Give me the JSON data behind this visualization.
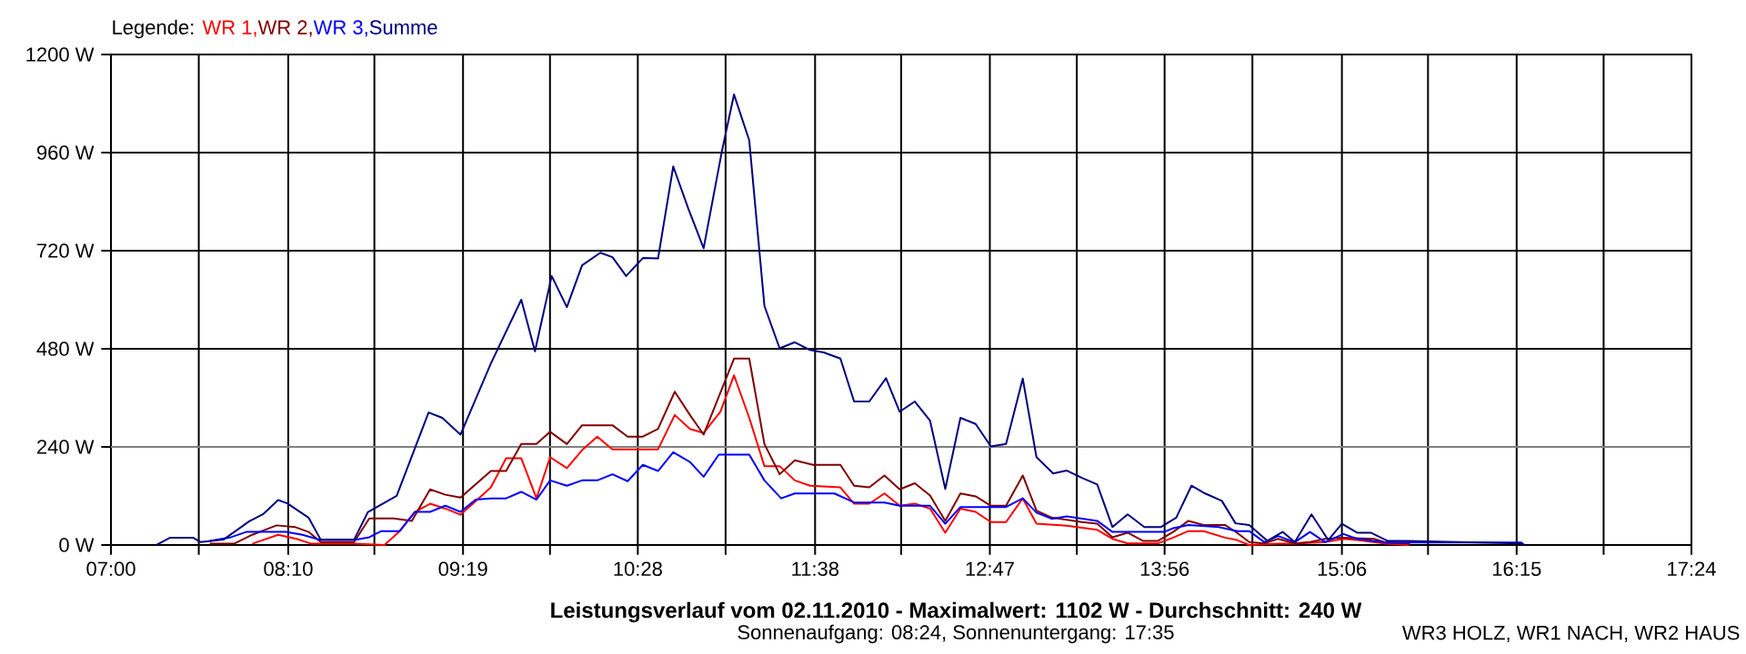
{
  "chart_data": {
    "type": "line",
    "title": "**Leistungsverlauf vom 02.11.2010 - Maximalwert: 1102 W - Durchschnitt: 240 W**",
    "subtitle": "Sonnenaufgang: 08:24, Sonnenuntergang: 17:35",
    "legend_title": "Legende:",
    "legend": "top left",
    "grid": true,
    "annotations": [
      "WR3 HOLZ, WR1 NACH, WR2 HAUS"
    ],
    "xlim": [
      7,
      17.4
    ],
    "ylim": [
      0,
      1200
    ],
    "xticks": [
      {
        "value": 7,
        "label": "07:00"
      },
      {
        "value": 7.5778,
        "label": null
      },
      {
        "value": 8.1667,
        "label": "08:10"
      },
      {
        "value": 8.7333,
        "label": null
      },
      {
        "value": 9.3167,
        "label": "09:19"
      },
      {
        "value": 9.8889,
        "label": null
      },
      {
        "value": 10.4667,
        "label": "10:28"
      },
      {
        "value": 11.0444,
        "label": null
      },
      {
        "value": 11.6333,
        "label": "11:38"
      },
      {
        "value": 12.2,
        "label": null
      },
      {
        "value": 12.7833,
        "label": "12:47"
      },
      {
        "value": 13.3556,
        "label": null
      },
      {
        "value": 13.9333,
        "label": "13:56"
      },
      {
        "value": 14.5111,
        "label": null
      },
      {
        "value": 15.1,
        "label": "15:06"
      },
      {
        "value": 15.6667,
        "label": null
      },
      {
        "value": 16.25,
        "label": "16:15"
      },
      {
        "value": 16.8222,
        "label": null
      },
      {
        "value": 17.4,
        "label": "17:24"
      }
    ],
    "yticks": [
      {
        "value": 0,
        "label": "0 W"
      },
      {
        "value": 240,
        "label": "240 W"
      },
      {
        "value": 480,
        "label": "480 W"
      },
      {
        "value": 720,
        "label": "720 W"
      },
      {
        "value": 960,
        "label": "960 W"
      },
      {
        "value": 1200,
        "label": "1200 W"
      }
    ],
    "ref_lines": [
      {
        "axis": "y",
        "value": 240,
        "color": "#808080"
      }
    ],
    "series": [
      {
        "name": "WR 1,",
        "color": "#ff0000",
        "x": [
          7.93,
          8.1,
          8.22,
          8.32,
          8.6,
          8.8,
          8.9,
          9.0,
          9.1,
          9.2,
          9.3,
          9.4,
          9.5,
          9.6,
          9.7,
          9.8,
          9.89,
          10.0,
          10.1,
          10.2,
          10.3,
          10.6,
          10.71,
          10.81,
          10.9,
          11.01,
          11.1,
          11.2,
          11.3,
          11.4,
          11.5,
          11.6,
          11.8,
          11.89,
          11.99,
          12.09,
          12.19,
          12.29,
          12.39,
          12.49,
          12.59,
          12.69,
          12.79,
          12.89,
          13.0,
          13.09,
          13.29,
          13.49,
          13.59,
          13.69,
          13.89,
          13.99,
          14.09,
          14.19,
          14.33,
          14.41,
          14.49,
          14.68,
          14.79,
          14.99,
          15.11,
          15.2,
          15.39,
          15.54
        ],
        "values": [
          3,
          25,
          15,
          3,
          3,
          0,
          34,
          81,
          101,
          89,
          74,
          107,
          141,
          212,
          212,
          114,
          215,
          188,
          232,
          265,
          234,
          234,
          318,
          284,
          274,
          326,
          415,
          311,
          193,
          193,
          158,
          145,
          141,
          101,
          101,
          126,
          96,
          101,
          89,
          30,
          89,
          81,
          56,
          56,
          114,
          52,
          47,
          37,
          15,
          4,
          4,
          18,
          34,
          34,
          18,
          12,
          0,
          3,
          3,
          7,
          15,
          12,
          3,
          0
        ]
      },
      {
        "name": "WR 2,",
        "color": "#800000",
        "x": [
          7.65,
          7.81,
          7.93,
          8.09,
          8.21,
          8.3,
          8.38,
          8.6,
          8.7,
          8.86,
          8.98,
          9.1,
          9.2,
          9.3,
          9.5,
          9.6,
          9.7,
          9.8,
          9.89,
          10.0,
          10.1,
          10.3,
          10.4,
          10.5,
          10.6,
          10.71,
          10.81,
          10.9,
          11.04,
          11.1,
          11.2,
          11.3,
          11.4,
          11.5,
          11.62,
          11.8,
          11.89,
          11.99,
          12.09,
          12.19,
          12.29,
          12.39,
          12.49,
          12.59,
          12.69,
          12.79,
          12.89,
          13.0,
          13.09,
          13.19,
          13.39,
          13.49,
          13.59,
          13.69,
          13.79,
          13.89,
          13.99,
          14.09,
          14.19,
          14.33,
          14.41,
          14.49,
          14.59,
          14.68,
          14.79,
          14.89,
          14.99,
          15.11,
          15.31,
          15.39,
          15.54,
          15.55
        ],
        "values": [
          3,
          3,
          25,
          48,
          44,
          32,
          7,
          7,
          65,
          65,
          59,
          136,
          123,
          116,
          181,
          181,
          247,
          247,
          277,
          247,
          293,
          293,
          265,
          265,
          284,
          375,
          318,
          270,
          400,
          456,
          456,
          247,
          173,
          207,
          196,
          196,
          145,
          141,
          170,
          136,
          151,
          121,
          59,
          126,
          119,
          96,
          96,
          170,
          84,
          67,
          56,
          52,
          19,
          30,
          10,
          10,
          32,
          59,
          49,
          49,
          30,
          7,
          4,
          15,
          4,
          7,
          15,
          18,
          15,
          6,
          3,
          0
        ]
      },
      {
        "name": "WR 3,",
        "color": "#0000ff",
        "x": [
          7.65,
          7.79,
          7.89,
          8.15,
          8.26,
          8.38,
          8.6,
          8.7,
          8.78,
          8.9,
          9.0,
          9.1,
          9.2,
          9.3,
          9.4,
          9.5,
          9.6,
          9.7,
          9.8,
          9.89,
          10.0,
          10.1,
          10.2,
          10.3,
          10.4,
          10.5,
          10.6,
          10.7,
          10.81,
          10.9,
          11.0,
          11.2,
          11.3,
          11.41,
          11.5,
          11.76,
          11.89,
          12.09,
          12.19,
          12.39,
          12.49,
          12.59,
          12.89,
          13.0,
          13.09,
          13.19,
          13.29,
          13.49,
          13.59,
          13.93,
          13.99,
          14.09,
          14.29,
          14.41,
          14.49,
          14.59,
          14.68,
          14.79,
          14.89,
          14.99,
          15.11,
          15.2,
          15.39,
          16.28,
          16.3
        ],
        "values": [
          10,
          19,
          32,
          32,
          25,
          12,
          12,
          19,
          34,
          34,
          81,
          81,
          96,
          81,
          111,
          114,
          114,
          130,
          111,
          158,
          145,
          158,
          158,
          173,
          156,
          196,
          181,
          227,
          203,
          167,
          221,
          221,
          158,
          114,
          126,
          126,
          104,
          104,
          96,
          96,
          52,
          93,
          93,
          114,
          79,
          64,
          70,
          59,
          32,
          32,
          41,
          49,
          44,
          34,
          34,
          7,
          22,
          7,
          32,
          7,
          27,
          15,
          6,
          6,
          0
        ]
      },
      {
        "name": "Summe",
        "color": "#000080",
        "x": [
          7.3,
          7.39,
          7.54,
          7.59,
          7.74,
          7.91,
          8.0,
          8.1,
          8.16,
          8.3,
          8.38,
          8.6,
          8.69,
          8.88,
          9.09,
          9.18,
          9.3,
          9.5,
          9.7,
          9.79,
          9.9,
          10.0,
          10.1,
          10.22,
          10.3,
          10.39,
          10.5,
          10.6,
          10.7,
          10.8,
          10.9,
          11.02,
          11.1,
          11.2,
          11.3,
          11.4,
          11.5,
          11.6,
          11.69,
          11.8,
          11.89,
          11.99,
          12.1,
          12.19,
          12.29,
          12.39,
          12.49,
          12.59,
          12.69,
          12.79,
          12.89,
          13.0,
          13.09,
          13.2,
          13.29,
          13.39,
          13.49,
          13.59,
          13.69,
          13.8,
          13.91,
          14.01,
          14.11,
          14.2,
          14.31,
          14.4,
          14.49,
          14.61,
          14.71,
          14.79,
          14.9,
          15.01,
          15.1,
          15.2,
          15.29,
          15.4,
          15.52,
          16.28,
          16.3
        ],
        "values": [
          0,
          18,
          18,
          7,
          13,
          58,
          75,
          110,
          102,
          67,
          13,
          13,
          80,
          120,
          324,
          311,
          270,
          444,
          600,
          474,
          658,
          582,
          684,
          715,
          704,
          658,
          702,
          701,
          926,
          822,
          726,
          963,
          1102,
          990,
          585,
          481,
          496,
          477,
          471,
          456,
          351,
          351,
          408,
          326,
          351,
          304,
          137,
          311,
          296,
          241,
          247,
          407,
          215,
          175,
          182,
          164,
          148,
          44,
          75,
          44,
          44,
          67,
          145,
          126,
          108,
          53,
          49,
          10,
          32,
          7,
          75,
          12,
          52,
          30,
          30,
          10,
          10,
          4,
          0
        ]
      }
    ]
  }
}
